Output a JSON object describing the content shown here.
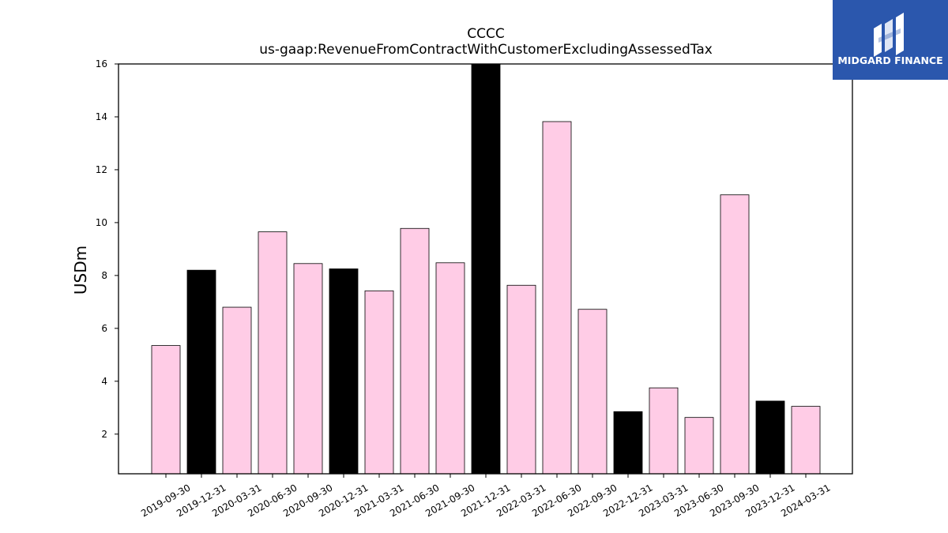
{
  "brand": {
    "name": "MIDGARD FINANCE",
    "background": "#2b57ad",
    "foreground": "#ffffff",
    "icon": "midgard-logo-icon"
  },
  "chart_data": {
    "type": "bar",
    "title": "CCCC",
    "subtitle": "us-gaap:RevenueFromContractWithCustomerExcludingAssessedTax",
    "xlabel": "",
    "ylabel": "USDm",
    "ylim": [
      0.5,
      16
    ],
    "yticks": [
      2,
      4,
      6,
      8,
      10,
      12,
      14,
      16
    ],
    "grid": false,
    "categories": [
      "2019-09-30",
      "2019-12-31",
      "2020-03-31",
      "2020-06-30",
      "2020-09-30",
      "2020-12-31",
      "2021-03-31",
      "2021-06-30",
      "2021-09-30",
      "2021-12-31",
      "2022-03-31",
      "2022-06-30",
      "2022-09-30",
      "2022-12-31",
      "2023-03-31",
      "2023-06-30",
      "2023-09-30",
      "2023-12-31",
      "2024-03-31"
    ],
    "values": [
      5.35,
      8.2,
      6.8,
      9.65,
      8.45,
      8.25,
      7.42,
      9.78,
      8.48,
      16.6,
      7.63,
      13.82,
      6.72,
      2.85,
      3.75,
      2.63,
      11.05,
      3.25,
      3.05
    ],
    "bar_colors": [
      "#ffcce6",
      "#000000",
      "#ffcce6",
      "#ffcce6",
      "#ffcce6",
      "#000000",
      "#ffcce6",
      "#ffcce6",
      "#ffcce6",
      "#000000",
      "#ffcce6",
      "#ffcce6",
      "#ffcce6",
      "#000000",
      "#ffcce6",
      "#ffcce6",
      "#ffcce6",
      "#000000",
      "#ffcce6"
    ],
    "edge_color": "#000000"
  }
}
